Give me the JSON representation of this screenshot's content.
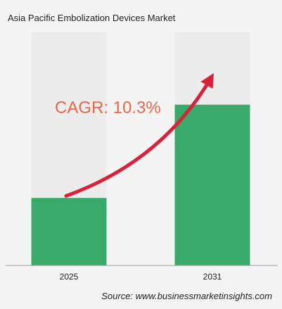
{
  "chart_data": {
    "type": "bar",
    "title": "Asia Pacific Embolization Devices Market",
    "categories": [
      "2025",
      "2031"
    ],
    "values": [
      42,
      100
    ],
    "ylim": [
      0,
      145
    ],
    "grid": false,
    "legend": "none",
    "annotation": "CAGR: 10.3%",
    "source": "Source: www.businessmarketinsights.com"
  },
  "colors": {
    "bar": "#3aaa6a",
    "bar_background": "#ececec",
    "arrow": "#d9213a",
    "annotation": "#e8664a"
  }
}
